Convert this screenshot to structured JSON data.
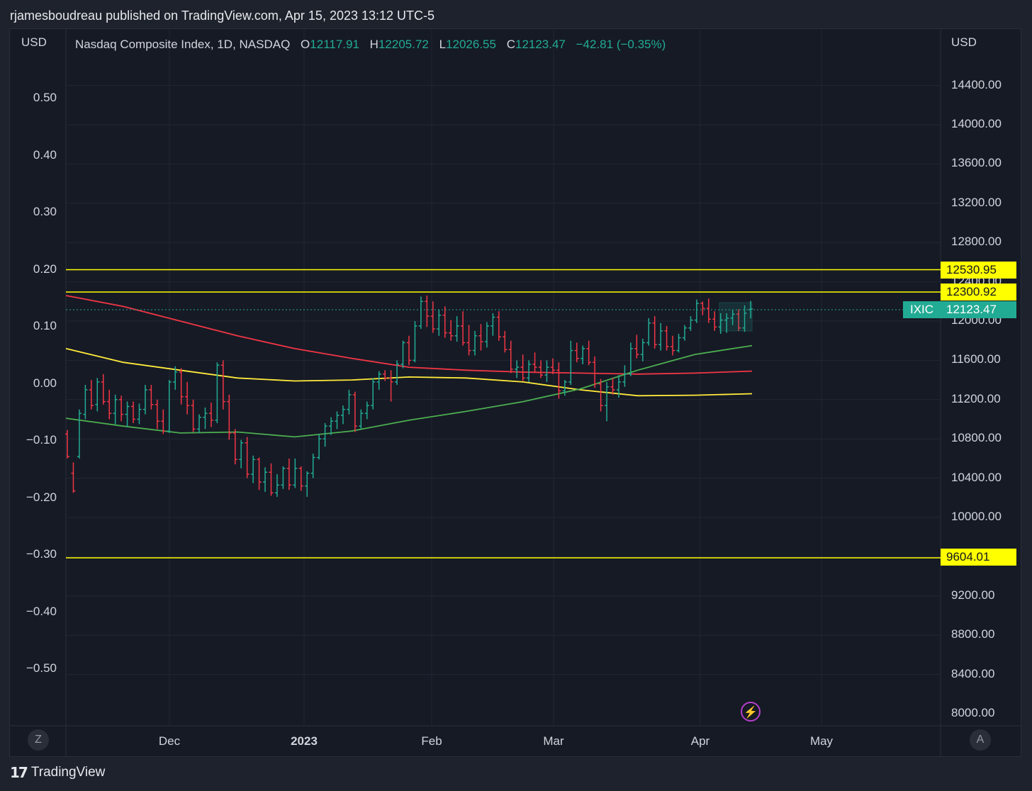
{
  "header": {
    "publisher_line": "rjamesboudreau published on TradingView.com, Apr 15, 2023 13:12 UTC-5"
  },
  "legend": {
    "name": "Nasdaq Composite Index, 1D, NASDAQ",
    "open_label": "O",
    "open": "12117.91",
    "high_label": "H",
    "high": "12205.72",
    "low_label": "L",
    "low": "12026.55",
    "close_label": "C",
    "close": "12123.47",
    "change": "−42.81 (−0.35%)"
  },
  "axes": {
    "left_unit": "USD",
    "right_unit": "USD",
    "right_ticks": [
      "14400.00",
      "14000.00",
      "13600.00",
      "13200.00",
      "12800.00",
      "12400.00",
      "12000.00",
      "11600.00",
      "11200.00",
      "10800.00",
      "10400.00",
      "10000.00",
      "9200.00",
      "8800.00",
      "8400.00",
      "8000.00"
    ],
    "left_ticks": [
      "0.50",
      "0.40",
      "0.30",
      "0.20",
      "0.10",
      "0.00",
      "−0.10",
      "−0.20",
      "−0.30",
      "−0.40",
      "−0.50"
    ],
    "x_ticks": [
      {
        "label": "Dec",
        "bold": false
      },
      {
        "label": "2023",
        "bold": true
      },
      {
        "label": "Feb",
        "bold": false
      },
      {
        "label": "Mar",
        "bold": false
      },
      {
        "label": "Apr",
        "bold": false
      },
      {
        "label": "May",
        "bold": false
      }
    ]
  },
  "levels": {
    "upper": "12530.95",
    "middle": "12300.92",
    "lower": "9604.01",
    "last_price": "12123.47",
    "symbol": "IXIC"
  },
  "buttons": {
    "left_corner": "Z",
    "right_corner": "A",
    "flash_icon": "⚡"
  },
  "footer": {
    "logo_mark": "17",
    "brand": "TradingView"
  },
  "colors": {
    "up": "#22ab94",
    "down": "#f23645",
    "level": "#ffff00",
    "sma_red": "#f23645",
    "sma_yellow": "#ffeb3b",
    "sma_green": "#4caf50"
  },
  "chart_data": {
    "type": "ohlc",
    "title": "Nasdaq Composite Index, 1D, NASDAQ",
    "ylabel": "USD",
    "ylim": [
      7930,
      14800
    ],
    "horizontal_levels": [
      12530.95,
      12300.92,
      9604.01
    ],
    "last_close": 12123.47,
    "bars": [
      [
        10850,
        10890,
        10600,
        10620
      ],
      [
        10450,
        10560,
        10250,
        10270
      ],
      [
        10620,
        11100,
        10600,
        11060
      ],
      [
        11050,
        11350,
        11000,
        11300
      ],
      [
        11300,
        11400,
        11100,
        11140
      ],
      [
        11150,
        11420,
        11080,
        11380
      ],
      [
        11380,
        11460,
        11150,
        11180
      ],
      [
        11180,
        11300,
        11000,
        11060
      ],
      [
        11060,
        11250,
        10950,
        11200
      ],
      [
        11200,
        11240,
        10980,
        11050
      ],
      [
        11050,
        11180,
        10920,
        11130
      ],
      [
        11130,
        11180,
        10960,
        11000
      ],
      [
        11000,
        11160,
        10950,
        11100
      ],
      [
        11100,
        11350,
        11050,
        11300
      ],
      [
        11300,
        11350,
        11100,
        11150
      ],
      [
        11150,
        11200,
        10900,
        10980
      ],
      [
        10980,
        11100,
        10850,
        10880
      ],
      [
        10880,
        11400,
        10860,
        11380
      ],
      [
        11380,
        11540,
        11300,
        11480
      ],
      [
        11480,
        11520,
        11150,
        11230
      ],
      [
        11230,
        11380,
        11050,
        11140
      ],
      [
        11140,
        11200,
        10870,
        10900
      ],
      [
        10900,
        11050,
        10860,
        11020
      ],
      [
        11020,
        11120,
        10900,
        11060
      ],
      [
        11060,
        11170,
        10920,
        10990
      ],
      [
        10990,
        11580,
        10960,
        11550
      ],
      [
        11550,
        11600,
        11100,
        11180
      ],
      [
        11180,
        11250,
        10790,
        10860
      ],
      [
        10860,
        10900,
        10540,
        10590
      ],
      [
        10590,
        10790,
        10500,
        10760
      ],
      [
        10760,
        10820,
        10400,
        10440
      ],
      [
        10440,
        10630,
        10350,
        10590
      ],
      [
        10590,
        10610,
        10280,
        10360
      ],
      [
        10360,
        10510,
        10260,
        10460
      ],
      [
        10460,
        10550,
        10220,
        10250
      ],
      [
        10250,
        10440,
        10210,
        10330
      ],
      [
        10330,
        10520,
        10290,
        10500
      ],
      [
        10500,
        10600,
        10280,
        10330
      ],
      [
        10330,
        10600,
        10300,
        10500
      ],
      [
        10500,
        10520,
        10270,
        10320
      ],
      [
        10320,
        10470,
        10210,
        10450
      ],
      [
        10450,
        10650,
        10400,
        10610
      ],
      [
        10610,
        10850,
        10590,
        10800
      ],
      [
        10800,
        10960,
        10720,
        10930
      ],
      [
        10930,
        11020,
        10840,
        10980
      ],
      [
        10980,
        11080,
        10900,
        11040
      ],
      [
        11040,
        11140,
        10950,
        11100
      ],
      [
        11100,
        11300,
        11050,
        11250
      ],
      [
        11250,
        11280,
        10870,
        10930
      ],
      [
        10930,
        11100,
        10900,
        11060
      ],
      [
        11060,
        11180,
        11000,
        11140
      ],
      [
        11140,
        11420,
        11100,
        11380
      ],
      [
        11380,
        11490,
        11300,
        11460
      ],
      [
        11460,
        11500,
        11390,
        11420
      ],
      [
        11420,
        11500,
        11180,
        11380
      ],
      [
        11380,
        11600,
        11350,
        11560
      ],
      [
        11560,
        11800,
        11520,
        11780
      ],
      [
        11780,
        11850,
        11550,
        11600
      ],
      [
        11600,
        12000,
        11580,
        11950
      ],
      [
        11950,
        12250,
        11920,
        12200
      ],
      [
        12200,
        12260,
        11940,
        12050
      ],
      [
        12050,
        12200,
        11880,
        11920
      ],
      [
        11920,
        12120,
        11850,
        12060
      ],
      [
        12060,
        12150,
        11830,
        11880
      ],
      [
        11880,
        12010,
        11800,
        11850
      ],
      [
        11850,
        12050,
        11790,
        11950
      ],
      [
        11950,
        12100,
        11750,
        11780
      ],
      [
        11780,
        11960,
        11650,
        11700
      ],
      [
        11700,
        11900,
        11650,
        11850
      ],
      [
        11850,
        11970,
        11700,
        11790
      ],
      [
        11790,
        11990,
        11730,
        11950
      ],
      [
        11950,
        12080,
        11850,
        12040
      ],
      [
        12040,
        12100,
        11800,
        11840
      ],
      [
        11840,
        11900,
        11680,
        11710
      ],
      [
        11710,
        11800,
        11470,
        11510
      ],
      [
        11510,
        11600,
        11420,
        11530
      ],
      [
        11530,
        11660,
        11390,
        11420
      ],
      [
        11420,
        11600,
        11380,
        11560
      ],
      [
        11560,
        11680,
        11480,
        11530
      ],
      [
        11530,
        11600,
        11420,
        11450
      ],
      [
        11450,
        11600,
        11380,
        11530
      ],
      [
        11530,
        11620,
        11460,
        11500
      ],
      [
        11500,
        11580,
        11210,
        11290
      ],
      [
        11290,
        11400,
        11240,
        11380
      ],
      [
        11380,
        11800,
        11350,
        11700
      ],
      [
        11700,
        11780,
        11580,
        11620
      ],
      [
        11620,
        11750,
        11560,
        11720
      ],
      [
        11720,
        11800,
        11550,
        11580
      ],
      [
        11580,
        11640,
        11320,
        11360
      ],
      [
        11360,
        11410,
        11080,
        11140
      ],
      [
        11140,
        11380,
        10980,
        11330
      ],
      [
        11330,
        11420,
        11250,
        11300
      ],
      [
        11300,
        11450,
        11220,
        11380
      ],
      [
        11380,
        11550,
        11330,
        11460
      ],
      [
        11460,
        11780,
        11440,
        11720
      ],
      [
        11720,
        11860,
        11620,
        11660
      ],
      [
        11660,
        11820,
        11590,
        11780
      ],
      [
        11780,
        12030,
        11750,
        11980
      ],
      [
        11980,
        12050,
        11720,
        11760
      ],
      [
        11760,
        11980,
        11700,
        11900
      ],
      [
        11900,
        11950,
        11700,
        11740
      ],
      [
        11740,
        11850,
        11650,
        11700
      ],
      [
        11700,
        11870,
        11680,
        11830
      ],
      [
        11830,
        11960,
        11800,
        11930
      ],
      [
        11930,
        12050,
        11900,
        12010
      ],
      [
        12010,
        12220,
        11980,
        12180
      ],
      [
        12180,
        12200,
        12060,
        12130
      ],
      [
        12130,
        12230,
        11980,
        12020
      ],
      [
        12020,
        12100,
        11900,
        11940
      ],
      [
        11940,
        12080,
        11870,
        12010
      ],
      [
        12010,
        12080,
        11880,
        12030
      ],
      [
        12030,
        12110,
        11960,
        12070
      ],
      [
        12070,
        12120,
        11900,
        11930
      ],
      [
        11930,
        12160,
        11890,
        12080
      ],
      [
        12117.91,
        12205.72,
        12026.55,
        12123.47
      ]
    ],
    "moving_averages": [
      {
        "name": "MA red",
        "color": "#f23645",
        "values": [
          12260,
          12150,
          12000,
          11850,
          11720,
          11620,
          11530,
          11500,
          11480,
          11470,
          11460,
          11470,
          11490
        ]
      },
      {
        "name": "MA yellow",
        "color": "#ffeb3b",
        "values": [
          11720,
          11580,
          11500,
          11420,
          11390,
          11400,
          11430,
          11420,
          11380,
          11300,
          11240,
          11245,
          11260
        ]
      },
      {
        "name": "MA green",
        "color": "#4caf50",
        "values": [
          11010,
          10930,
          10860,
          10870,
          10820,
          10880,
          10990,
          11080,
          11180,
          11310,
          11500,
          11660,
          11750
        ]
      }
    ]
  }
}
